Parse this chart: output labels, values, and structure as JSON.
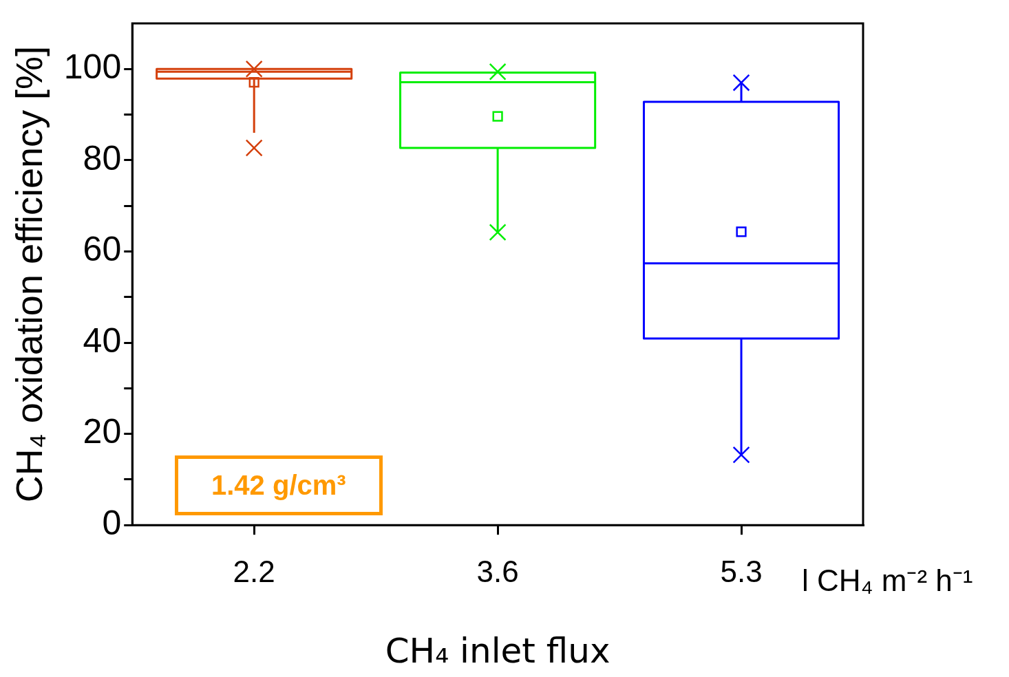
{
  "chart_data": {
    "type": "box",
    "categories": [
      "2.2",
      "3.6",
      "5.3"
    ],
    "boxes": [
      {
        "low": 86.0,
        "q1": 97.9,
        "median": 99.4,
        "q3": 100.0,
        "high": 100.0,
        "mean": 97.1,
        "outliers": [
          100.0,
          82.7
        ]
      },
      {
        "low": 64.2,
        "q1": 82.7,
        "median": 97.1,
        "q3": 99.2,
        "high": 99.2,
        "mean": 89.6,
        "outliers": [
          99.4,
          64.2
        ]
      },
      {
        "low": 15.4,
        "q1": 40.9,
        "median": 57.4,
        "q3": 92.8,
        "high": 97.0,
        "mean": 64.3,
        "outliers": [
          97.0,
          15.4
        ]
      }
    ],
    "colors": [
      "#d4400c",
      "#00ee00",
      "#0000ff"
    ],
    "xlabel": "CH₄ inlet flux",
    "ylabel": "CH₄ oxidation efficiency [%]",
    "ylim": [
      0,
      110
    ],
    "yticks": [
      0,
      {
        "value": 10,
        "label": null
      },
      20,
      {
        "value": 30,
        "label": null
      },
      40,
      {
        "value": 50,
        "label": null
      },
      60,
      {
        "value": 70,
        "label": null
      },
      80,
      {
        "value": 90,
        "label": null
      },
      100
    ],
    "grid": false,
    "legend": false,
    "marker": "cross",
    "annotations": [
      "1.42 g/cm³",
      "l CH₄ m⁻² h⁻¹"
    ]
  }
}
